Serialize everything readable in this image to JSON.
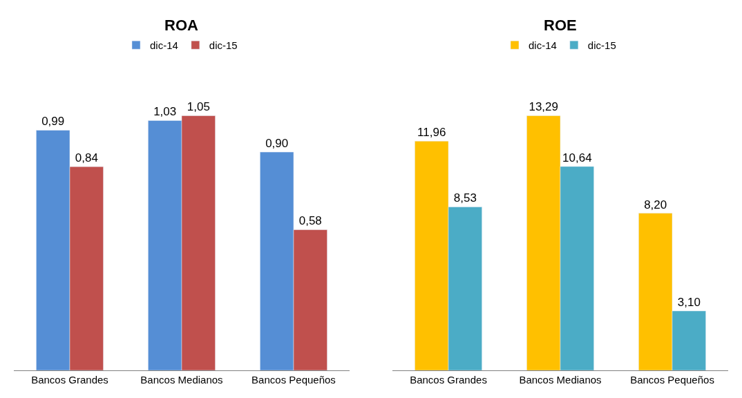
{
  "chart_data": [
    {
      "type": "bar",
      "title": "ROA",
      "categories": [
        "Bancos Grandes",
        "Bancos Medianos",
        "Bancos Pequeños"
      ],
      "legend": "top",
      "series": [
        {
          "name": "dic-14",
          "color": "#558ed5",
          "values": [
            0.99,
            1.03,
            0.9
          ],
          "value_labels": [
            "0,99",
            "1,03",
            "0,90"
          ]
        },
        {
          "name": "dic-15",
          "color": "#c0504d",
          "values": [
            0.84,
            1.05,
            0.58
          ],
          "value_labels": [
            "0,84",
            "1,05",
            "0,58"
          ]
        }
      ]
    },
    {
      "type": "bar",
      "title": "ROE",
      "categories": [
        "Bancos Grandes",
        "Bancos Medianos",
        "Bancos Pequeños"
      ],
      "legend": "top",
      "series": [
        {
          "name": "dic-14",
          "color": "#ffc000",
          "values": [
            11.96,
            13.29,
            8.2
          ],
          "value_labels": [
            "11,96",
            "13,29",
            "8,20"
          ]
        },
        {
          "name": "dic-15",
          "color": "#4bacc6",
          "values": [
            8.53,
            10.64,
            3.1
          ],
          "value_labels": [
            "8,53",
            "10,64",
            "3,10"
          ]
        }
      ]
    }
  ]
}
